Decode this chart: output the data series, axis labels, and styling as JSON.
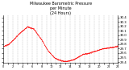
{
  "title": "Milwaukee Barometric Pressure\nper Minute\n(24 Hours)",
  "title_fontsize": 3.5,
  "line_color": "#ff0000",
  "bg_color": "#ffffff",
  "grid_color": "#999999",
  "ylim": [
    29.38,
    30.45
  ],
  "yticks": [
    29.4,
    29.5,
    29.6,
    29.7,
    29.8,
    29.9,
    30.0,
    30.1,
    30.2,
    30.3,
    30.4
  ],
  "ylabel_fontsize": 2.8,
  "xlabel_fontsize": 2.5,
  "num_points": 1440,
  "x_tick_interval": 60,
  "curve_points_x": [
    0,
    60,
    120,
    200,
    300,
    380,
    480,
    560,
    640,
    700,
    760,
    820,
    880,
    940,
    1000,
    1060,
    1120,
    1180,
    1240,
    1300,
    1380,
    1440
  ],
  "curve_points_y": [
    29.76,
    29.8,
    29.9,
    30.05,
    30.2,
    30.15,
    29.9,
    29.65,
    29.5,
    29.45,
    29.42,
    29.43,
    29.46,
    29.52,
    29.58,
    29.6,
    29.63,
    29.67,
    29.7,
    29.72,
    29.74,
    29.76
  ]
}
